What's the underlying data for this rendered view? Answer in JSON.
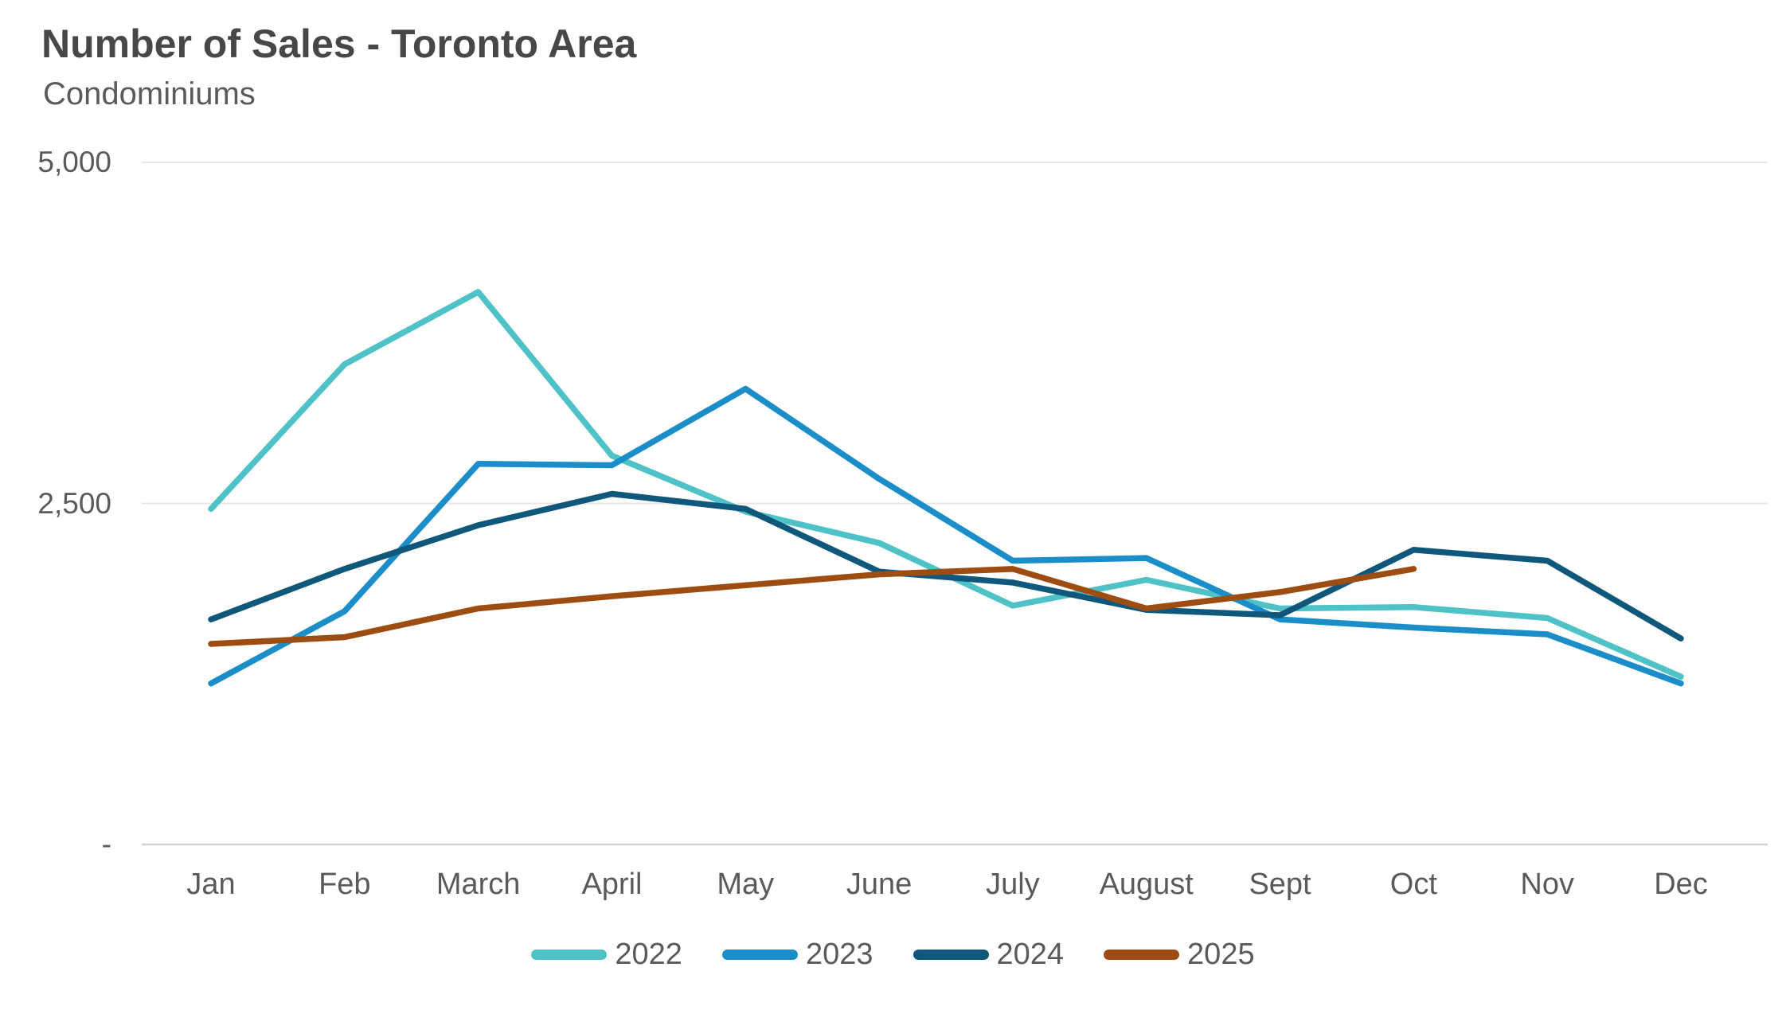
{
  "header": {
    "title": "Number of Sales - Toronto Area",
    "subtitle": "Condominiums"
  },
  "chart_data": {
    "type": "line",
    "title": "Number of Sales - Toronto Area",
    "subtitle": "Condominiums",
    "categories": [
      "Jan",
      "Feb",
      "March",
      "April",
      "May",
      "June",
      "July",
      "August",
      "Sept",
      "Oct",
      "Nov",
      "Dec"
    ],
    "ylabel": "",
    "xlabel": "",
    "ylim": [
      0,
      5000
    ],
    "y_ticks": [
      {
        "label": "5,000",
        "value": 5000
      },
      {
        "label": "2,500",
        "value": 2500
      },
      {
        "label": "-",
        "value": 0
      }
    ],
    "grid": "horizontal-only",
    "legend_position": "bottom",
    "series": [
      {
        "name": "2022",
        "color": "#4EC2C6",
        "values": [
          2460,
          3520,
          4050,
          2850,
          2440,
          2210,
          1750,
          1940,
          1730,
          1740,
          1660,
          1230
        ]
      },
      {
        "name": "2023",
        "color": "#1B8EC9",
        "values": [
          1180,
          1710,
          2790,
          2780,
          3340,
          2680,
          2080,
          2100,
          1650,
          1590,
          1540,
          1180
        ]
      },
      {
        "name": "2024",
        "color": "#10587B",
        "values": [
          1650,
          2020,
          2340,
          2570,
          2460,
          2000,
          1920,
          1720,
          1680,
          2160,
          2080,
          1510
        ]
      },
      {
        "name": "2025",
        "color": "#9D4D12",
        "values": [
          1470,
          1520,
          1730,
          1820,
          1900,
          1980,
          2020,
          1730,
          1850,
          2020
        ]
      }
    ],
    "colors": {
      "title_text": "#474747",
      "label_text": "#5a5a5a",
      "gridline": "#e8e8e8",
      "axis_line": "#d2d2d2",
      "background": "#ffffff"
    }
  }
}
